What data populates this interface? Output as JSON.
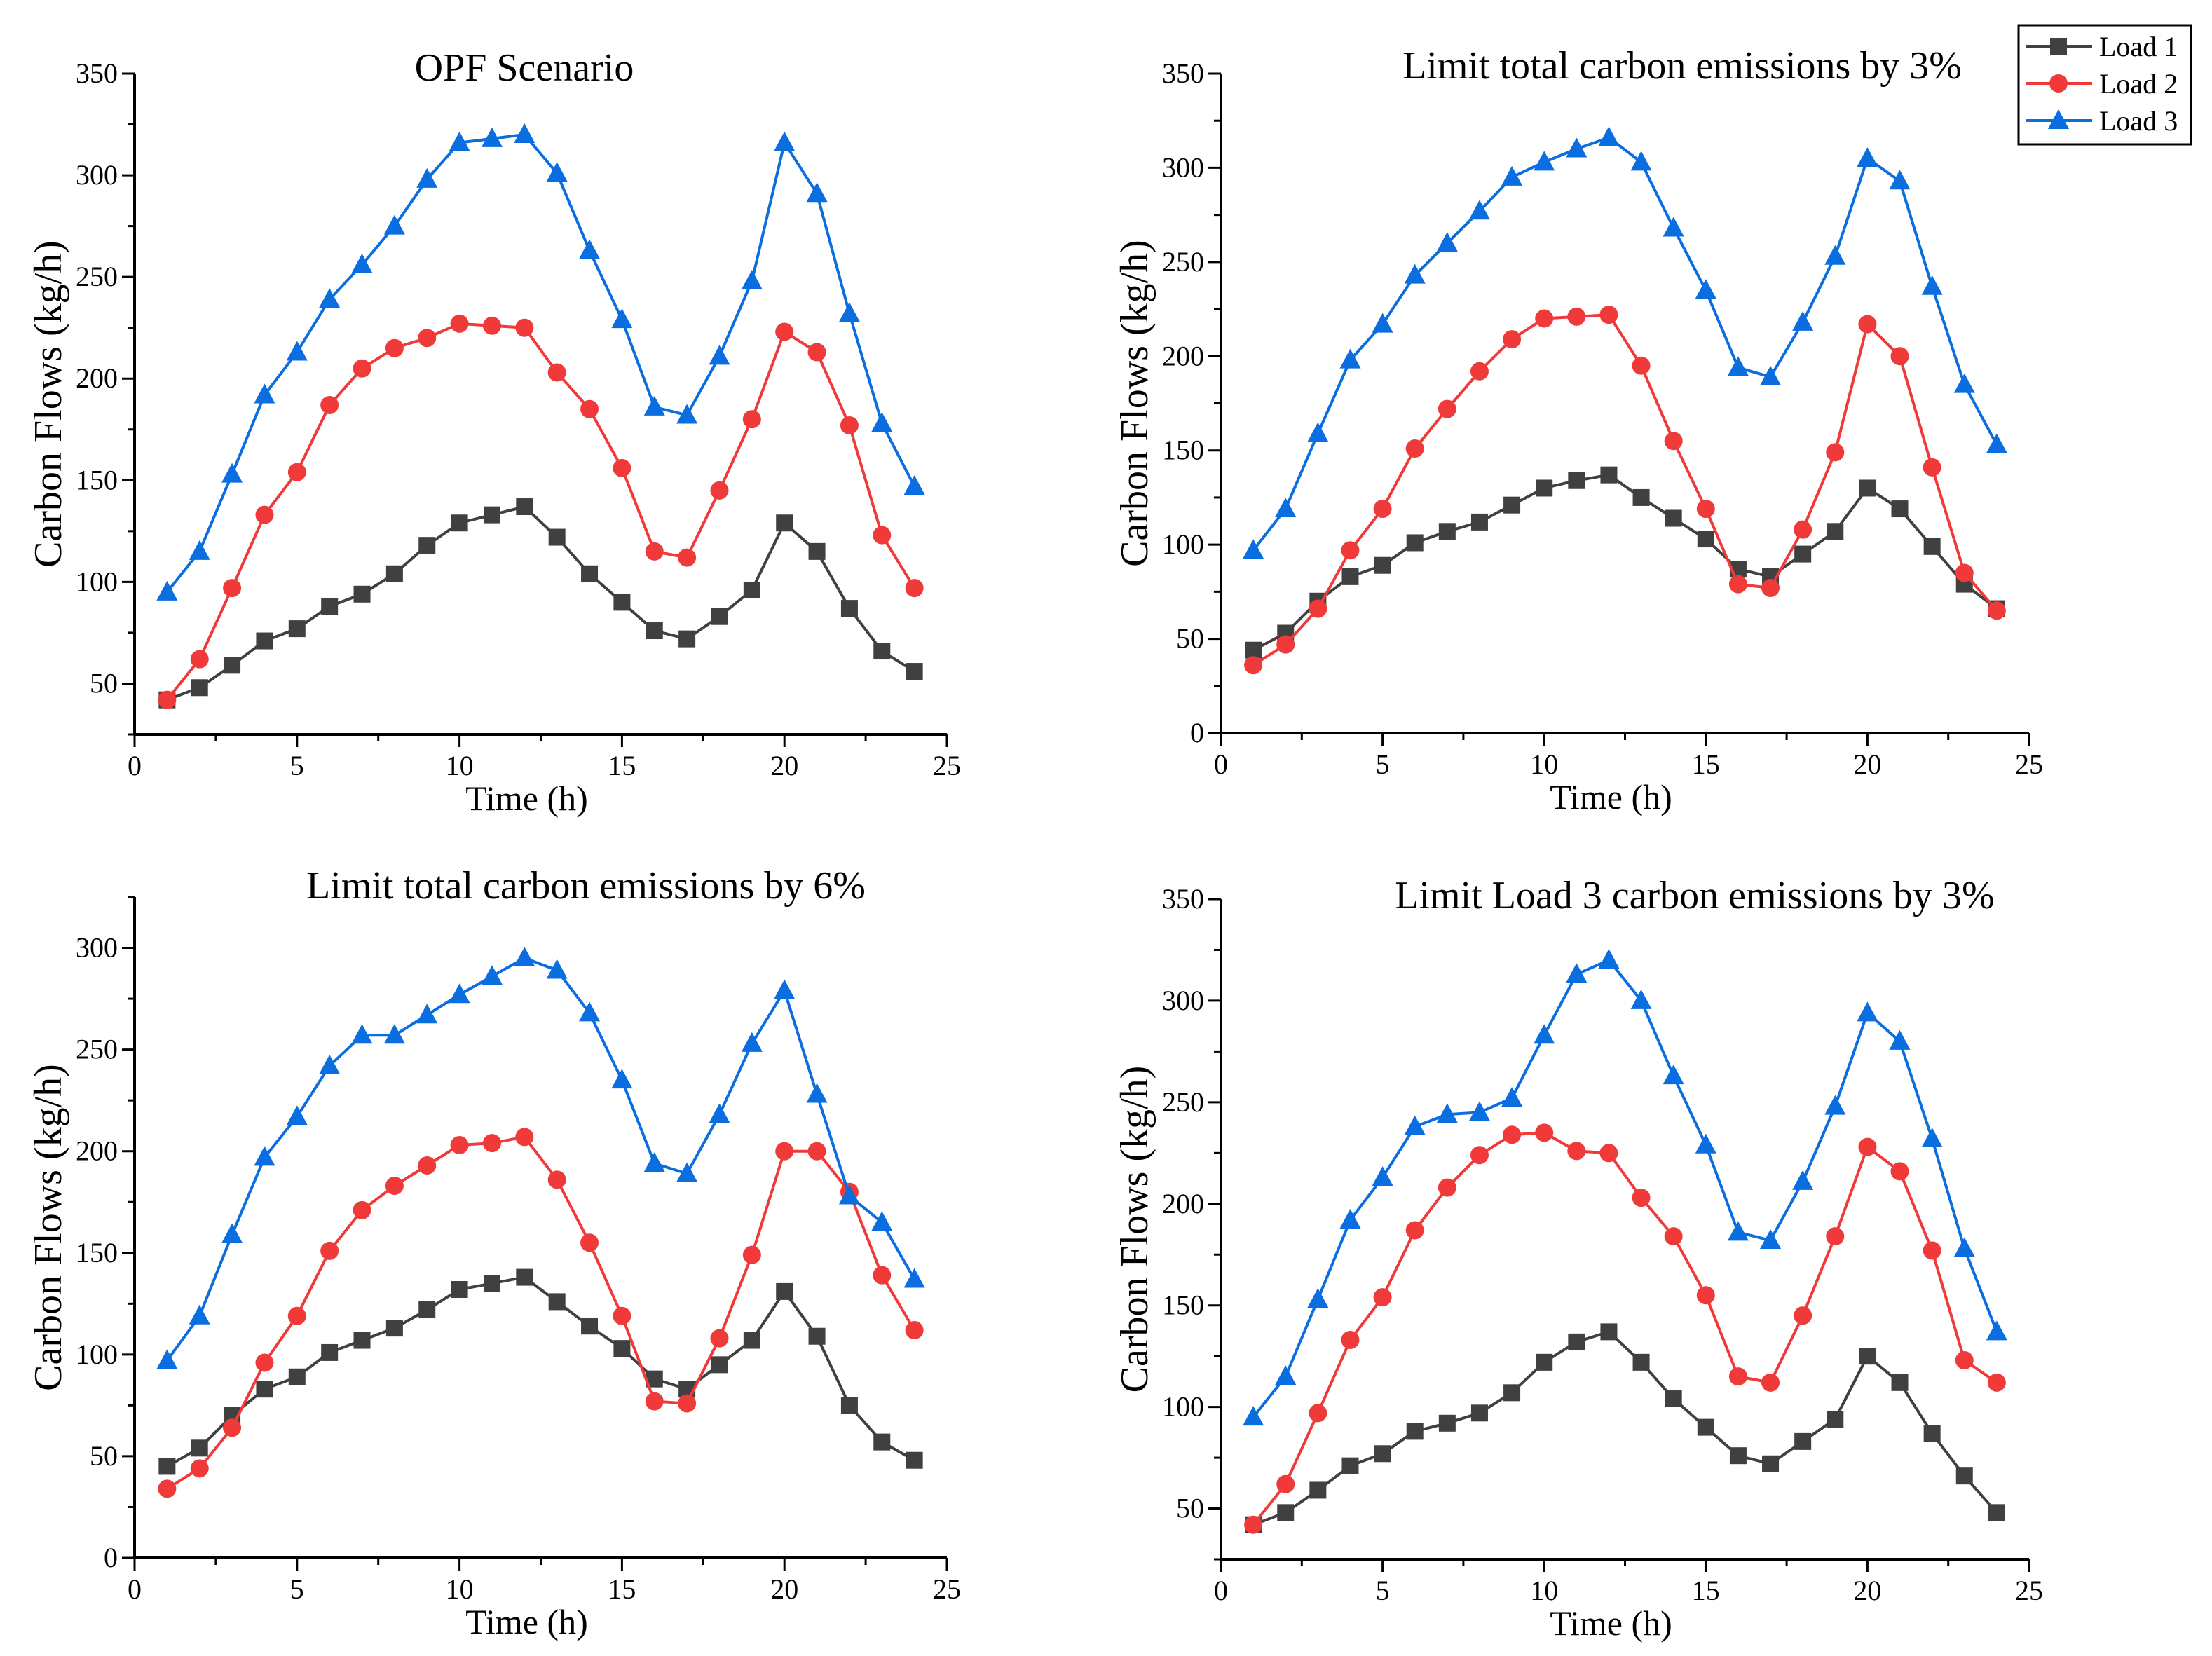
{
  "colors": {
    "load1": "#404040",
    "load2": "#f03a3a",
    "load3": "#0b6ee0"
  },
  "legend": {
    "position": "top-right",
    "entries": [
      "Load 1",
      "Load 2",
      "Load 3"
    ]
  },
  "chart_data": [
    {
      "type": "line",
      "title": "OPF Scenario",
      "xlabel": "Time (h)",
      "ylabel": "Carbon Flows (kg/h)",
      "xlim": [
        0,
        25
      ],
      "ylim": [
        25,
        350
      ],
      "xticks": [
        0,
        5,
        10,
        15,
        20,
        25
      ],
      "yticks": [
        50,
        100,
        150,
        200,
        250,
        300,
        350
      ],
      "x": [
        1,
        2,
        3,
        4,
        5,
        6,
        7,
        8,
        9,
        10,
        11,
        12,
        13,
        14,
        15,
        16,
        17,
        18,
        19,
        20,
        21,
        22,
        23,
        24
      ],
      "series": [
        {
          "name": "Load 1",
          "values": [
            42,
            48,
            59,
            71,
            77,
            88,
            94,
            104,
            118,
            129,
            133,
            137,
            122,
            104,
            90,
            76,
            72,
            83,
            96,
            129,
            115,
            87,
            66,
            56
          ]
        },
        {
          "name": "Load 2",
          "values": [
            42,
            62,
            97,
            133,
            154,
            187,
            205,
            215,
            220,
            227,
            226,
            225,
            203,
            185,
            156,
            115,
            112,
            145,
            180,
            223,
            213,
            177,
            123,
            97
          ]
        },
        {
          "name": "Load 3",
          "values": [
            95,
            115,
            153,
            192,
            213,
            239,
            256,
            275,
            298,
            316,
            318,
            320,
            301,
            263,
            229,
            186,
            182,
            211,
            248,
            316,
            291,
            232,
            178,
            147
          ]
        }
      ]
    },
    {
      "type": "line",
      "title": "Limit total carbon emissions by 3%",
      "xlabel": "Time (h)",
      "ylabel": "Carbon Flows (kg/h)",
      "xlim": [
        0,
        25
      ],
      "ylim": [
        0,
        350
      ],
      "xticks": [
        0,
        5,
        10,
        15,
        20,
        25
      ],
      "yticks": [
        0,
        50,
        100,
        150,
        200,
        250,
        300,
        350
      ],
      "x": [
        1,
        2,
        3,
        4,
        5,
        6,
        7,
        8,
        9,
        10,
        11,
        12,
        13,
        14,
        15,
        16,
        17,
        18,
        19,
        20,
        21,
        22,
        23,
        24
      ],
      "series": [
        {
          "name": "Load 1",
          "values": [
            44,
            53,
            70,
            83,
            89,
            101,
            107,
            112,
            121,
            130,
            134,
            137,
            125,
            114,
            103,
            87,
            83,
            95,
            107,
            130,
            119,
            99,
            79,
            66
          ]
        },
        {
          "name": "Load 2",
          "values": [
            36,
            47,
            66,
            97,
            119,
            151,
            172,
            192,
            209,
            220,
            221,
            222,
            195,
            155,
            119,
            79,
            77,
            108,
            149,
            217,
            200,
            141,
            85,
            65
          ]
        },
        {
          "name": "Load 3",
          "values": [
            97,
            119,
            159,
            198,
            217,
            243,
            260,
            277,
            295,
            303,
            310,
            316,
            303,
            268,
            235,
            194,
            189,
            218,
            253,
            305,
            293,
            237,
            185,
            153
          ]
        }
      ]
    },
    {
      "type": "line",
      "title": "Limit total carbon emissions by 6%",
      "xlabel": "Time (h)",
      "ylabel": "Carbon Flows (kg/h)",
      "xlim": [
        0,
        25
      ],
      "ylim": [
        0,
        325
      ],
      "xticks": [
        0,
        5,
        10,
        15,
        20,
        25
      ],
      "yticks": [
        0,
        50,
        100,
        150,
        200,
        250,
        300
      ],
      "x": [
        1,
        2,
        3,
        4,
        5,
        6,
        7,
        8,
        9,
        10,
        11,
        12,
        13,
        14,
        15,
        16,
        17,
        18,
        19,
        20,
        21,
        22,
        23,
        24
      ],
      "series": [
        {
          "name": "Load 1",
          "values": [
            45,
            54,
            70,
            83,
            89,
            101,
            107,
            113,
            122,
            132,
            135,
            138,
            126,
            114,
            103,
            88,
            83,
            95,
            107,
            131,
            109,
            75,
            57,
            48
          ]
        },
        {
          "name": "Load 2",
          "values": [
            34,
            44,
            64,
            96,
            119,
            151,
            171,
            183,
            193,
            203,
            204,
            207,
            186,
            155,
            119,
            77,
            76,
            108,
            149,
            200,
            200,
            180,
            139,
            112
          ]
        },
        {
          "name": "Load 3",
          "values": [
            97,
            119,
            159,
            197,
            217,
            242,
            257,
            257,
            267,
            277,
            286,
            295,
            289,
            268,
            235,
            194,
            189,
            218,
            253,
            279,
            228,
            178,
            165,
            137
          ]
        }
      ]
    },
    {
      "type": "line",
      "title": "Limit Load 3 carbon emissions by 3%",
      "xlabel": "Time (h)",
      "ylabel": "Carbon Flows (kg/h)",
      "xlim": [
        0,
        25
      ],
      "ylim": [
        25,
        350
      ],
      "xticks": [
        0,
        5,
        10,
        15,
        20,
        25
      ],
      "yticks": [
        50,
        100,
        150,
        200,
        250,
        300,
        350
      ],
      "x": [
        1,
        2,
        3,
        4,
        5,
        6,
        7,
        8,
        9,
        10,
        11,
        12,
        13,
        14,
        15,
        16,
        17,
        18,
        19,
        20,
        21,
        22,
        23,
        24
      ],
      "series": [
        {
          "name": "Load 1",
          "values": [
            42,
            48,
            59,
            71,
            77,
            88,
            92,
            97,
            107,
            122,
            132,
            137,
            122,
            104,
            90,
            76,
            72,
            83,
            94,
            125,
            112,
            87,
            66,
            48
          ]
        },
        {
          "name": "Load 2",
          "values": [
            42,
            62,
            97,
            133,
            154,
            187,
            208,
            224,
            234,
            235,
            226,
            225,
            203,
            184,
            155,
            115,
            112,
            145,
            184,
            228,
            216,
            177,
            123,
            112
          ]
        },
        {
          "name": "Load 3",
          "values": [
            95,
            115,
            153,
            192,
            213,
            238,
            244,
            245,
            252,
            283,
            313,
            320,
            300,
            263,
            229,
            186,
            182,
            211,
            248,
            294,
            280,
            232,
            178,
            137
          ]
        }
      ]
    }
  ]
}
